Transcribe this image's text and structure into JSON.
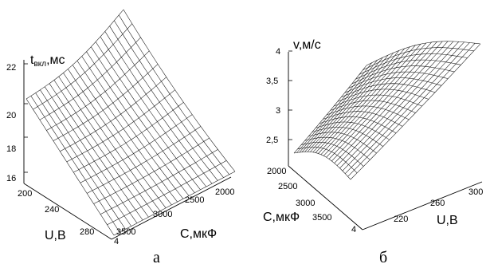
{
  "chart_data": [
    {
      "type": "surface",
      "panel": "а",
      "zlabel_main": "t",
      "zlabel_sub": "вкл",
      "zlabel_unit": ",мс",
      "xlabel": "U,В",
      "ylabel": "C,мкФ",
      "z_ticks": [
        "22",
        "20",
        "18",
        "16"
      ],
      "x_ticks": [
        "200",
        "240",
        "280"
      ],
      "y_ticks": [
        "2000",
        "2500",
        "3000",
        "3500"
      ],
      "extra_tick": "4",
      "x_range": [
        200,
        290
      ],
      "y_range": [
        1800,
        3800
      ],
      "z_range": [
        15,
        23
      ],
      "grid": {
        "rows": 21,
        "cols": 13
      },
      "corners": {
        "u200_c3800": 19.8,
        "u200_c1800": 23.0,
        "u290_c3800": 14.6,
        "u290_c1800": 15.4
      }
    },
    {
      "type": "surface",
      "panel": "б",
      "zlabel": "v,м/с",
      "xlabel": "U,В",
      "ylabel": "C,мкФ",
      "z_ticks": [
        "4",
        "3,5",
        "3",
        "2,5"
      ],
      "x_ticks": [
        "220",
        "260",
        "300"
      ],
      "y_ticks": [
        "2000",
        "2500",
        "3000",
        "3500"
      ],
      "extra_tick": "4",
      "x_range": [
        200,
        300
      ],
      "y_range": [
        1800,
        3800
      ],
      "z_range": [
        2.0,
        4.2
      ],
      "grid": {
        "rows": 21,
        "cols": 20
      },
      "corners": {
        "u200_c1800": 2.2,
        "u200_c3800": 4.1,
        "u300_c1800": 2.15,
        "u300_c3800": 4.05
      }
    }
  ]
}
